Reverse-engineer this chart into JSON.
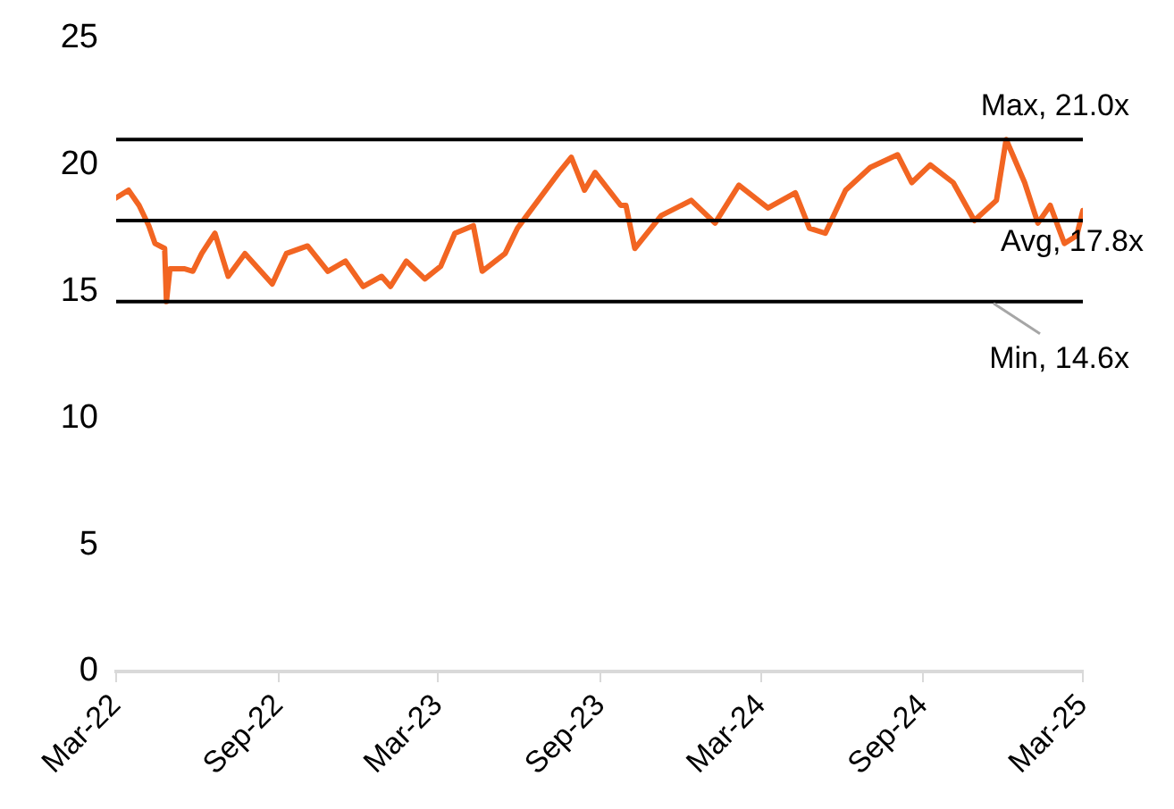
{
  "chart_data": {
    "type": "line",
    "x": [
      "2022-03-01",
      "2022-03-15",
      "2022-03-27",
      "2022-04-07",
      "2022-04-14",
      "2022-04-25",
      "2022-04-27",
      "2022-05-01",
      "2022-05-17",
      "2022-05-27",
      "2022-06-06",
      "2022-06-21",
      "2022-07-06",
      "2022-07-25",
      "2022-08-25",
      "2022-09-10",
      "2022-10-04",
      "2022-10-27",
      "2022-11-16",
      "2022-12-06",
      "2022-12-27",
      "2023-01-06",
      "2023-01-24",
      "2023-02-14",
      "2023-03-04",
      "2023-03-20",
      "2023-04-10",
      "2023-04-20",
      "2023-05-16",
      "2023-05-30",
      "2023-06-16",
      "2023-07-16",
      "2023-07-30",
      "2023-08-14",
      "2023-08-26",
      "2023-09-24",
      "2023-09-30",
      "2023-10-10",
      "2023-11-09",
      "2023-12-13",
      "2024-01-09",
      "2024-02-05",
      "2024-03-09",
      "2024-04-09",
      "2024-04-25",
      "2024-05-13",
      "2024-06-05",
      "2024-07-03",
      "2024-08-03",
      "2024-08-19",
      "2024-09-09",
      "2024-10-05",
      "2024-10-29",
      "2024-11-23",
      "2024-12-04",
      "2024-12-25",
      "2025-01-09",
      "2025-01-23",
      "2025-02-08",
      "2025-02-22",
      "2025-03-01"
    ],
    "series": [
      {
        "color": "#f26522",
        "values": [
          18.7,
          19.0,
          18.4,
          17.6,
          16.9,
          16.7,
          14.6,
          15.9,
          15.9,
          15.8,
          16.5,
          17.3,
          15.6,
          16.5,
          15.3,
          16.5,
          16.8,
          15.8,
          16.2,
          15.2,
          15.6,
          15.2,
          16.2,
          15.5,
          16.0,
          17.3,
          17.6,
          15.8,
          16.5,
          17.5,
          18.3,
          19.7,
          20.3,
          19.0,
          19.7,
          18.4,
          18.4,
          16.7,
          18.0,
          18.6,
          17.7,
          19.2,
          18.3,
          18.9,
          17.5,
          17.3,
          19.0,
          19.9,
          20.4,
          19.3,
          20.0,
          19.3,
          17.8,
          18.6,
          21.0,
          19.3,
          17.7,
          18.4,
          16.9,
          17.2,
          18.2
        ]
      }
    ],
    "xlim": [
      "2022-03-01",
      "2025-03-01"
    ],
    "xticks": [
      {
        "value": "2022-03-01",
        "label": "Mar-22"
      },
      {
        "value": "2022-09-01",
        "label": "Sep-22"
      },
      {
        "value": "2023-03-01",
        "label": "Mar-23"
      },
      {
        "value": "2023-09-01",
        "label": "Sep-23"
      },
      {
        "value": "2024-03-01",
        "label": "Mar-24"
      },
      {
        "value": "2024-09-01",
        "label": "Sep-24"
      },
      {
        "value": "2025-03-01",
        "label": "Mar-25"
      }
    ],
    "ylim": [
      0,
      25
    ],
    "yticks": [
      0,
      5,
      10,
      15,
      20,
      25
    ],
    "ref_lines": [
      {
        "axis": "y",
        "value": 21.0,
        "label": "Max, 21.0x",
        "color": "#000000"
      },
      {
        "axis": "y",
        "value": 17.8,
        "label": "Avg, 17.8x",
        "color": "#000000"
      },
      {
        "axis": "y",
        "value": 14.6,
        "label": "Min, 14.6x",
        "color": "#000000"
      }
    ],
    "grid": false,
    "legend": false,
    "marker": "none",
    "line_style": "solid"
  }
}
